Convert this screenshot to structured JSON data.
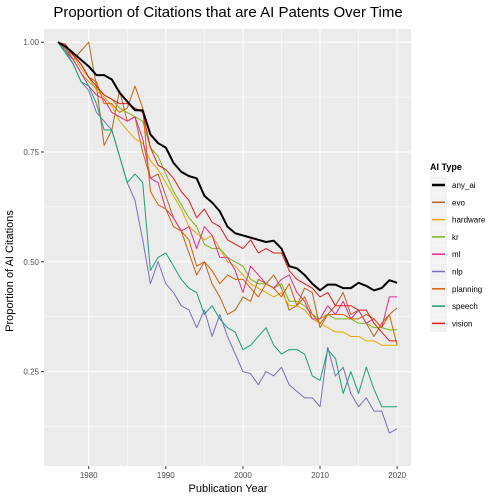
{
  "chart_data": {
    "type": "line",
    "title": "Proportion of Citations that are AI Patents Over Time",
    "xlabel": "Publication Year",
    "ylabel": "Proportion of AI Citations",
    "xlim": [
      1974.2,
      2021.8
    ],
    "ylim": [
      0.035,
      1.03
    ],
    "x_ticks": [
      1980,
      1990,
      2000,
      2010,
      2020
    ],
    "y_ticks": [
      0.25,
      0.5,
      0.75,
      1.0
    ],
    "x_tick_labels": [
      "1980",
      "1990",
      "2000",
      "2010",
      "2020"
    ],
    "y_tick_labels": [
      "0.25",
      "0.50",
      "0.75",
      "1.00"
    ],
    "grid": true,
    "legend_title": "AI Type",
    "legend_position": "right",
    "x": [
      1976,
      1977,
      1978,
      1979,
      1980,
      1981,
      1982,
      1983,
      1984,
      1985,
      1986,
      1987,
      1988,
      1989,
      1990,
      1991,
      1992,
      1993,
      1994,
      1995,
      1996,
      1997,
      1998,
      1999,
      2000,
      2001,
      2002,
      2003,
      2004,
      2005,
      2006,
      2007,
      2008,
      2009,
      2010,
      2011,
      2012,
      2013,
      2014,
      2015,
      2016,
      2017,
      2018,
      2019,
      2020
    ],
    "series": [
      {
        "name": "any_ai",
        "color": "#000000",
        "width": 2.0,
        "values": [
          1.0,
          0.99,
          0.975,
          0.96,
          0.945,
          0.925,
          0.925,
          0.915,
          0.885,
          0.865,
          0.845,
          0.845,
          0.79,
          0.77,
          0.76,
          0.725,
          0.705,
          0.695,
          0.69,
          0.65,
          0.635,
          0.615,
          0.58,
          0.565,
          0.56,
          0.555,
          0.55,
          0.545,
          0.548,
          0.53,
          0.49,
          0.485,
          0.47,
          0.45,
          0.435,
          0.448,
          0.448,
          0.44,
          0.44,
          0.452,
          0.445,
          0.435,
          0.44,
          0.458,
          0.452
        ]
      },
      {
        "name": "evo",
        "color": "#b5651d",
        "width": 1.0,
        "values": [
          1.0,
          0.99,
          0.96,
          0.98,
          1.0,
          0.9,
          0.765,
          0.8,
          0.89,
          0.82,
          0.83,
          0.75,
          0.69,
          0.7,
          0.65,
          0.6,
          0.57,
          0.52,
          0.47,
          0.5,
          0.45,
          0.42,
          0.38,
          0.39,
          0.42,
          0.41,
          0.46,
          0.45,
          0.47,
          0.44,
          0.39,
          0.4,
          0.44,
          0.43,
          0.35,
          0.38,
          0.4,
          0.43,
          0.38,
          0.39,
          0.36,
          0.33,
          0.36,
          0.38,
          0.395
        ]
      },
      {
        "name": "hardware",
        "color": "#e6a800",
        "width": 1.0,
        "values": [
          1.0,
          0.99,
          0.97,
          0.94,
          0.92,
          0.89,
          0.875,
          0.855,
          0.82,
          0.8,
          0.78,
          0.77,
          0.73,
          0.71,
          0.68,
          0.65,
          0.62,
          0.58,
          0.565,
          0.55,
          0.56,
          0.53,
          0.5,
          0.49,
          0.47,
          0.45,
          0.44,
          0.43,
          0.42,
          0.43,
          0.4,
          0.4,
          0.39,
          0.37,
          0.36,
          0.35,
          0.34,
          0.34,
          0.33,
          0.33,
          0.32,
          0.32,
          0.31,
          0.31,
          0.31
        ]
      },
      {
        "name": "kr",
        "color": "#7ab317",
        "width": 1.0,
        "values": [
          1.0,
          0.985,
          0.96,
          0.93,
          0.91,
          0.895,
          0.88,
          0.87,
          0.85,
          0.84,
          0.83,
          0.82,
          0.76,
          0.74,
          0.7,
          0.66,
          0.63,
          0.6,
          0.58,
          0.54,
          0.53,
          0.53,
          0.51,
          0.5,
          0.49,
          0.46,
          0.45,
          0.45,
          0.44,
          0.45,
          0.41,
          0.41,
          0.4,
          0.38,
          0.37,
          0.38,
          0.37,
          0.37,
          0.37,
          0.36,
          0.36,
          0.35,
          0.35,
          0.345,
          0.345
        ]
      },
      {
        "name": "ml",
        "color": "#e7298a",
        "width": 1.0,
        "values": [
          1.0,
          0.98,
          0.96,
          0.93,
          0.9,
          0.88,
          0.87,
          0.84,
          0.83,
          0.82,
          0.83,
          0.78,
          0.69,
          0.68,
          0.62,
          0.6,
          0.57,
          0.58,
          0.53,
          0.58,
          0.56,
          0.51,
          0.51,
          0.48,
          0.43,
          0.49,
          0.47,
          0.45,
          0.44,
          0.46,
          0.47,
          0.43,
          0.41,
          0.37,
          0.37,
          0.4,
          0.38,
          0.41,
          0.37,
          0.39,
          0.36,
          0.37,
          0.35,
          0.42,
          0.42
        ]
      },
      {
        "name": "nlp",
        "color": "#7570b3",
        "width": 1.0,
        "values": [
          1.0,
          0.98,
          0.95,
          0.91,
          0.89,
          0.84,
          0.82,
          0.8,
          0.74,
          0.68,
          0.64,
          0.55,
          0.45,
          0.5,
          0.45,
          0.43,
          0.4,
          0.39,
          0.35,
          0.39,
          0.33,
          0.38,
          0.33,
          0.29,
          0.25,
          0.245,
          0.22,
          0.25,
          0.24,
          0.26,
          0.22,
          0.205,
          0.19,
          0.19,
          0.17,
          0.305,
          0.24,
          0.26,
          0.2,
          0.17,
          0.19,
          0.16,
          0.16,
          0.11,
          0.12
        ]
      },
      {
        "name": "planning",
        "color": "#d95f02",
        "width": 1.0,
        "values": [
          1.0,
          0.985,
          0.97,
          0.95,
          0.92,
          0.91,
          0.86,
          0.86,
          0.84,
          0.85,
          0.9,
          0.85,
          0.66,
          0.63,
          0.62,
          0.58,
          0.57,
          0.55,
          0.49,
          0.5,
          0.48,
          0.45,
          0.47,
          0.46,
          0.46,
          0.44,
          0.42,
          0.45,
          0.44,
          0.42,
          0.45,
          0.4,
          0.42,
          0.38,
          0.36,
          0.38,
          0.38,
          0.38,
          0.37,
          0.37,
          0.38,
          0.37,
          0.35,
          0.38,
          0.31
        ]
      },
      {
        "name": "speech",
        "color": "#1b9e77",
        "width": 1.0,
        "values": [
          1.0,
          0.975,
          0.95,
          0.91,
          0.9,
          0.86,
          0.8,
          0.8,
          0.74,
          0.68,
          0.7,
          0.68,
          0.48,
          0.51,
          0.52,
          0.49,
          0.46,
          0.44,
          0.43,
          0.38,
          0.4,
          0.37,
          0.35,
          0.34,
          0.3,
          0.31,
          0.33,
          0.35,
          0.31,
          0.29,
          0.3,
          0.3,
          0.29,
          0.24,
          0.23,
          0.3,
          0.28,
          0.2,
          0.25,
          0.2,
          0.26,
          0.21,
          0.17,
          0.17,
          0.17
        ]
      },
      {
        "name": "vision",
        "color": "#e41a1c",
        "width": 1.0,
        "values": [
          1.0,
          0.995,
          0.97,
          0.95,
          0.92,
          0.9,
          0.88,
          0.87,
          0.86,
          0.86,
          0.85,
          0.84,
          0.76,
          0.72,
          0.71,
          0.69,
          0.66,
          0.64,
          0.6,
          0.62,
          0.59,
          0.58,
          0.55,
          0.54,
          0.53,
          0.55,
          0.52,
          0.53,
          0.52,
          0.52,
          0.48,
          0.46,
          0.45,
          0.44,
          0.42,
          0.43,
          0.4,
          0.4,
          0.4,
          0.39,
          0.39,
          0.36,
          0.34,
          0.32,
          0.32
        ]
      }
    ]
  }
}
